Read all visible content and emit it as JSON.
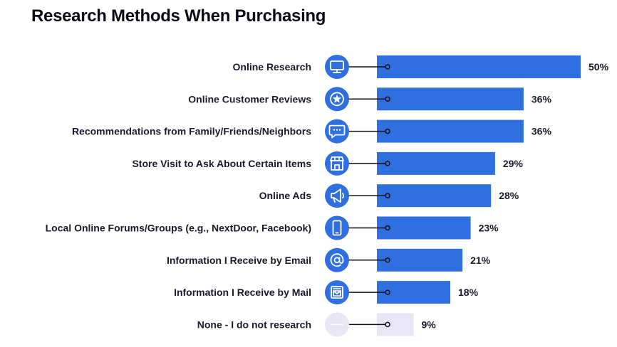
{
  "chart_data": {
    "type": "bar",
    "orientation": "horizontal",
    "title": "Research Methods When Purchasing",
    "categories": [
      "Online Research",
      "Online Customer Reviews",
      "Recommendations from Family/Friends/Neighbors",
      "Store Visit to Ask About Certain Items",
      "Online Ads",
      "Local Online Forums/Groups (e.g., NextDoor, Facebook)",
      "Information I Receive by Email",
      "Information I Receive by Mail",
      "None - I do not research"
    ],
    "values": [
      50,
      36,
      36,
      29,
      28,
      23,
      21,
      18,
      9
    ],
    "value_labels": [
      "50%",
      "36%",
      "36%",
      "29%",
      "28%",
      "23%",
      "21%",
      "18%",
      "9%"
    ],
    "icons": [
      "monitor-icon",
      "star-icon",
      "chat-bubble-icon",
      "storefront-icon",
      "megaphone-icon",
      "smartphone-icon",
      "at-sign-icon",
      "mailbox-icon",
      "dash-icon"
    ],
    "colors": {
      "bar": "#2f6fe0",
      "bar_muted": "#e8e6f4",
      "icon_bg": "#2f6fe0",
      "icon_bg_muted": "#e8e6f4",
      "text": "#1a1a2e"
    },
    "xlim": [
      0,
      50
    ]
  }
}
